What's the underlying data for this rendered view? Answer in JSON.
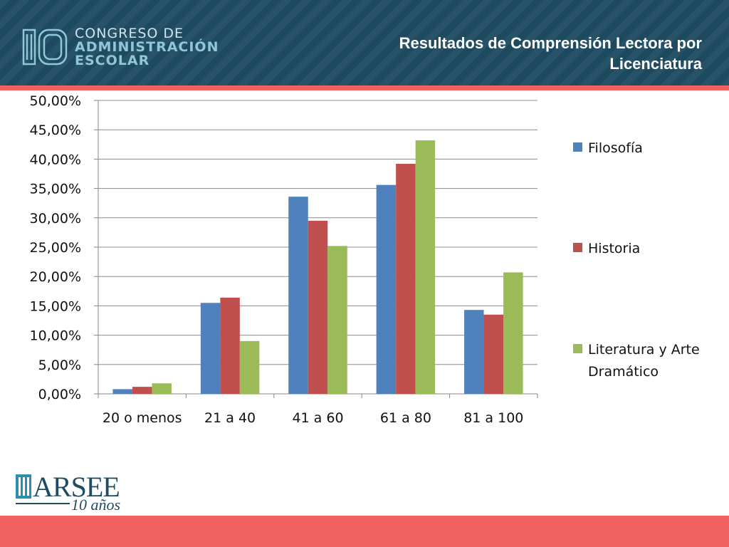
{
  "header": {
    "brand_line1": "CONGRESO DE",
    "brand_line2": "ADMINISTRACIÓN",
    "brand_line3": "ESCOLAR",
    "brand_number": "10",
    "title": "Resultados de Comprensión Lectora  por Licenciatura"
  },
  "footer": {
    "logo_word": "ARSEE",
    "logo_sub": "10 años"
  },
  "colors": {
    "header_bg": "#1f4c63",
    "accent": "#f26161"
  },
  "chart_data": {
    "type": "bar",
    "categories": [
      "20 o menos",
      "21 a 40",
      "41 a 60",
      "61 a 80",
      "81 a 100"
    ],
    "series": [
      {
        "name": "Filosofía",
        "color": "#4f81bd",
        "values": [
          0.8,
          15.5,
          33.6,
          35.6,
          14.3
        ]
      },
      {
        "name": "Historia",
        "color": "#c0504d",
        "values": [
          1.2,
          16.4,
          29.5,
          39.2,
          13.5
        ]
      },
      {
        "name": "Literatura y Arte Dramático",
        "color": "#9bbb59",
        "values": [
          1.8,
          9.0,
          25.2,
          43.2,
          20.7
        ]
      }
    ],
    "yticks": [
      "0,00%",
      "5,00%",
      "10,00%",
      "15,00%",
      "20,00%",
      "25,00%",
      "30,00%",
      "35,00%",
      "40,00%",
      "45,00%",
      "50,00%"
    ],
    "ylim": [
      0,
      50
    ],
    "grid": true,
    "legend_position": "right"
  }
}
